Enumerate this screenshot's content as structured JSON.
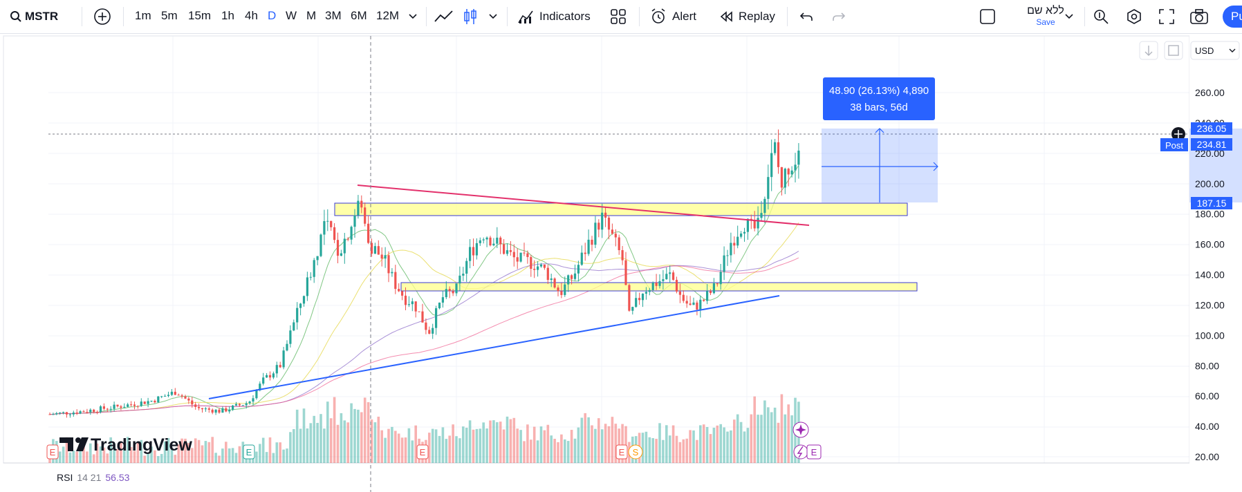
{
  "toolbar": {
    "symbol": "MSTR",
    "timeframes": [
      "1m",
      "5m",
      "15m",
      "1h",
      "4h",
      "D",
      "W",
      "M",
      "3M",
      "6M",
      "12M"
    ],
    "active_timeframe": "D",
    "indicators_label": "Indicators",
    "alert_label": "Alert",
    "replay_label": "Replay",
    "layout_name": "ללא שם",
    "save_label": "Save",
    "publish_label": "Pu"
  },
  "chart": {
    "currency": "USD",
    "price_axis": [
      "260.00",
      "240.00",
      "220.00",
      "200.00",
      "180.00",
      "160.00",
      "140.00",
      "120.00",
      "100.00",
      "80.00",
      "60.00",
      "40.00",
      "20.00"
    ],
    "last_price": "236.05",
    "post_label": "Post",
    "post_price": "234.81",
    "range_low": "187.15",
    "measure_line1": "48.90 (26.13%) 4,890",
    "measure_line2": "38 bars, 56d",
    "watermark": "TradingView",
    "rsi_label": "RSI",
    "rsi_params": "14 21",
    "rsi_value": "56.53",
    "event_badges": [
      "E",
      "E",
      "E",
      "E",
      "S",
      "E"
    ],
    "colors": {
      "accent": "#2962ff",
      "up": "#26a69a",
      "down": "#ef5350",
      "zone": "#ffff8c",
      "measure": "#2962ff"
    }
  }
}
